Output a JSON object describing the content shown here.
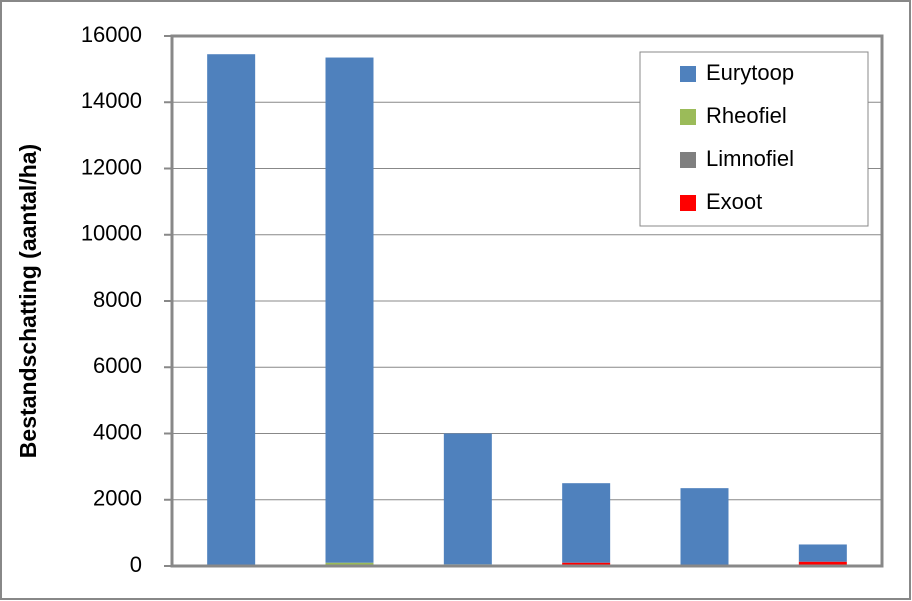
{
  "chart_data": {
    "type": "stacked_bar",
    "y_label": "Bestandschatting (aantal/ha)",
    "categories": [
      null,
      null,
      null,
      null,
      null,
      null
    ],
    "series": [
      {
        "name": "Eurytoop",
        "color": "#4f81bd",
        "values": [
          15450,
          15250,
          3950,
          2400,
          2320,
          520
        ]
      },
      {
        "name": "Rheofiel",
        "color": "#9bbb59",
        "values": [
          0,
          100,
          50,
          0,
          0,
          0
        ]
      },
      {
        "name": "Limnofiel",
        "color": "#7f7f7f",
        "values": [
          0,
          0,
          0,
          0,
          30,
          0
        ]
      },
      {
        "name": "Exoot",
        "color": "#ff0000",
        "values": [
          0,
          0,
          0,
          100,
          0,
          130
        ]
      }
    ],
    "ylim": [
      0,
      16000
    ],
    "yticks": [
      0,
      2000,
      4000,
      6000,
      8000,
      10000,
      12000,
      14000,
      16000
    ],
    "grid": true,
    "legend": "upper right"
  }
}
